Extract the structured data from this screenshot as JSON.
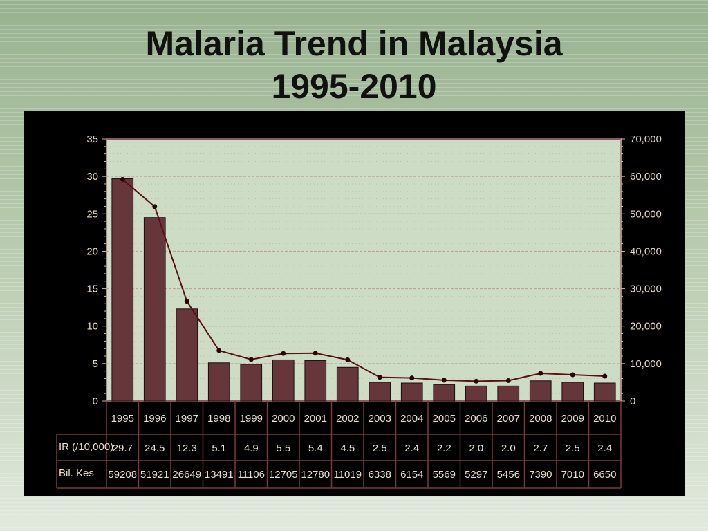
{
  "slide": {
    "title_line1": "Malaria Trend in Malaysia",
    "title_line2": "1995-2010"
  },
  "colors": {
    "bar": "#66373a",
    "line": "#5a0f14",
    "plot_bg": "#cddcc5",
    "grid": "#b79692",
    "frame": "#8a5b5a",
    "text": "#e6d6c6",
    "table_border": "#7a3a38"
  },
  "chart_data": {
    "type": "bar",
    "categories": [
      "1995",
      "1996",
      "1997",
      "1998",
      "1999",
      "2000",
      "2001",
      "2002",
      "2003",
      "2004",
      "2005",
      "2006",
      "2007",
      "2008",
      "2009",
      "2010"
    ],
    "series": [
      {
        "name": "IR (/10,000)",
        "type": "bar",
        "axis": "left",
        "values": [
          29.7,
          24.5,
          12.3,
          5.1,
          4.9,
          5.5,
          5.4,
          4.5,
          2.5,
          2.4,
          2.2,
          2.0,
          2.0,
          2.7,
          2.5,
          2.4
        ]
      },
      {
        "name": "Bil. Kes",
        "type": "line",
        "axis": "right",
        "values": [
          59208,
          51921,
          26649,
          13491,
          11106,
          12705,
          12780,
          11019,
          6338,
          6154,
          5569,
          5297,
          5456,
          7390,
          7010,
          6650
        ]
      }
    ],
    "ylim_left": [
      0,
      35
    ],
    "yticks_left": [
      "0",
      "5",
      "10",
      "15",
      "20",
      "25",
      "30",
      "35"
    ],
    "ylim_right": [
      0,
      70000
    ],
    "yticks_right": [
      "0",
      "10,000",
      "20,000",
      "30,000",
      "40,000",
      "50,000",
      "60,000",
      "70,000"
    ],
    "table": {
      "rows": [
        {
          "label": "IR (/10,000)",
          "cells": [
            "29.7",
            "24.5",
            "12.3",
            "5.1",
            "4.9",
            "5.5",
            "5.4",
            "4.5",
            "2.5",
            "2.4",
            "2.2",
            "2.0",
            "2.0",
            "2.7",
            "2.5",
            "2.4"
          ]
        },
        {
          "label": "Bil. Kes",
          "cells": [
            "59208",
            "51921",
            "26649",
            "13491",
            "11106",
            "12705",
            "12780",
            "11019",
            "6338",
            "6154",
            "5569",
            "5297",
            "5456",
            "7390",
            "7010",
            "6650"
          ]
        }
      ]
    },
    "grid": true,
    "legend": "data table below chart"
  }
}
